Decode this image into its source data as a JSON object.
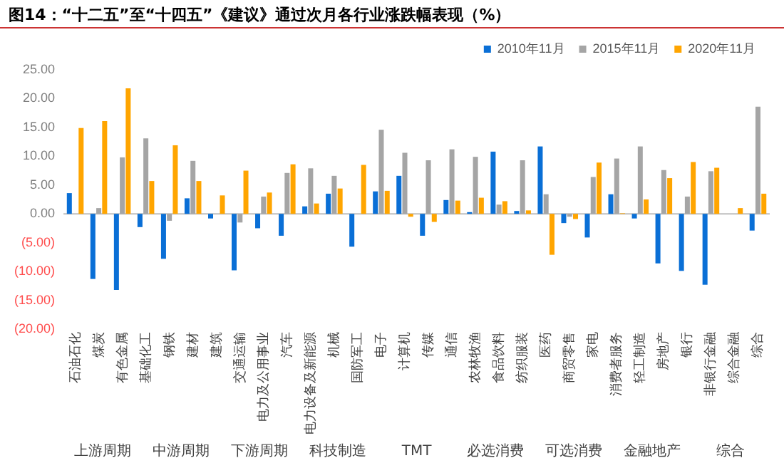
{
  "chart_data": {
    "type": "bar",
    "title": "图14：“十二五”至“十四五”《建议》通过次月各行业涨跌幅表现（%）",
    "categories": [
      "石油石化",
      "煤炭",
      "有色金属",
      "基础化工",
      "钢铁",
      "建材",
      "建筑",
      "交通运输",
      "电力及公用事业",
      "汽车",
      "电力设备及新能源",
      "机械",
      "国防军工",
      "电子",
      "计算机",
      "传媒",
      "通信",
      "农林牧渔",
      "食品饮料",
      "纺织服装",
      "医药",
      "商贸零售",
      "家电",
      "消费者服务",
      "轻工制造",
      "房地产",
      "银行",
      "非银行金融",
      "综合金融",
      "综合"
    ],
    "series": [
      {
        "name": "2010年11月",
        "color": "#0a6fd6",
        "values": [
          3.6,
          -11.3,
          -13.2,
          -2.3,
          -7.8,
          2.7,
          -0.8,
          -9.8,
          -2.5,
          -3.8,
          1.3,
          3.5,
          -5.7,
          3.9,
          6.6,
          -3.8,
          2.4,
          0.3,
          10.8,
          0.5,
          11.7,
          -1.6,
          -4.1,
          3.4,
          -0.8,
          -8.6,
          -9.9,
          -12.3,
          0,
          -2.9
        ]
      },
      {
        "name": "2015年11月",
        "color": "#a5a5a5",
        "values": [
          0,
          1,
          9.8,
          13.1,
          -1.2,
          9.2,
          null,
          -1.5,
          3,
          7.1,
          7.9,
          6.6,
          null,
          14.6,
          10.6,
          9.3,
          11.2,
          9.9,
          1.6,
          9.3,
          3.4,
          -0.5,
          6.4,
          9.6,
          11.7,
          7.6,
          3,
          7.4,
          0,
          18.6
        ]
      },
      {
        "name": "2020年11月",
        "color": "#ffa500",
        "values": [
          14.9,
          16.1,
          21.8,
          5.7,
          11.9,
          5.7,
          3.2,
          7.5,
          3.7,
          8.6,
          1.8,
          4.4,
          8.5,
          4,
          -0.5,
          -1.4,
          2.3,
          2.8,
          2.2,
          0.6,
          -7.1,
          -0.9,
          8.9,
          0.1,
          2.5,
          6.2,
          9,
          8,
          1,
          3.5
        ]
      }
    ],
    "ylim": [
      -20,
      25
    ],
    "yticks": [
      {
        "value": -20,
        "label": "(20.00)"
      },
      {
        "value": -15,
        "label": "(15.00)"
      },
      {
        "value": -10,
        "label": "(10.00)"
      },
      {
        "value": -5,
        "label": "(5.00)"
      },
      {
        "value": 0,
        "label": "0.00"
      },
      {
        "value": 5,
        "label": "5.00"
      },
      {
        "value": 10,
        "label": "10.00"
      },
      {
        "value": 15,
        "label": "15.00"
      },
      {
        "value": 20,
        "label": "20.00"
      },
      {
        "value": 25,
        "label": "25.00"
      }
    ],
    "grid": false,
    "legend": "top right",
    "ref_lines": [
      {
        "axis": "y",
        "value": 0,
        "color": "#bfbfbf"
      }
    ],
    "annotations": [
      "上游周期",
      "中游周期",
      "下游周期",
      "科技制造",
      "TMT",
      "必选消费",
      "可选消费",
      "金融地产",
      "综合"
    ]
  }
}
